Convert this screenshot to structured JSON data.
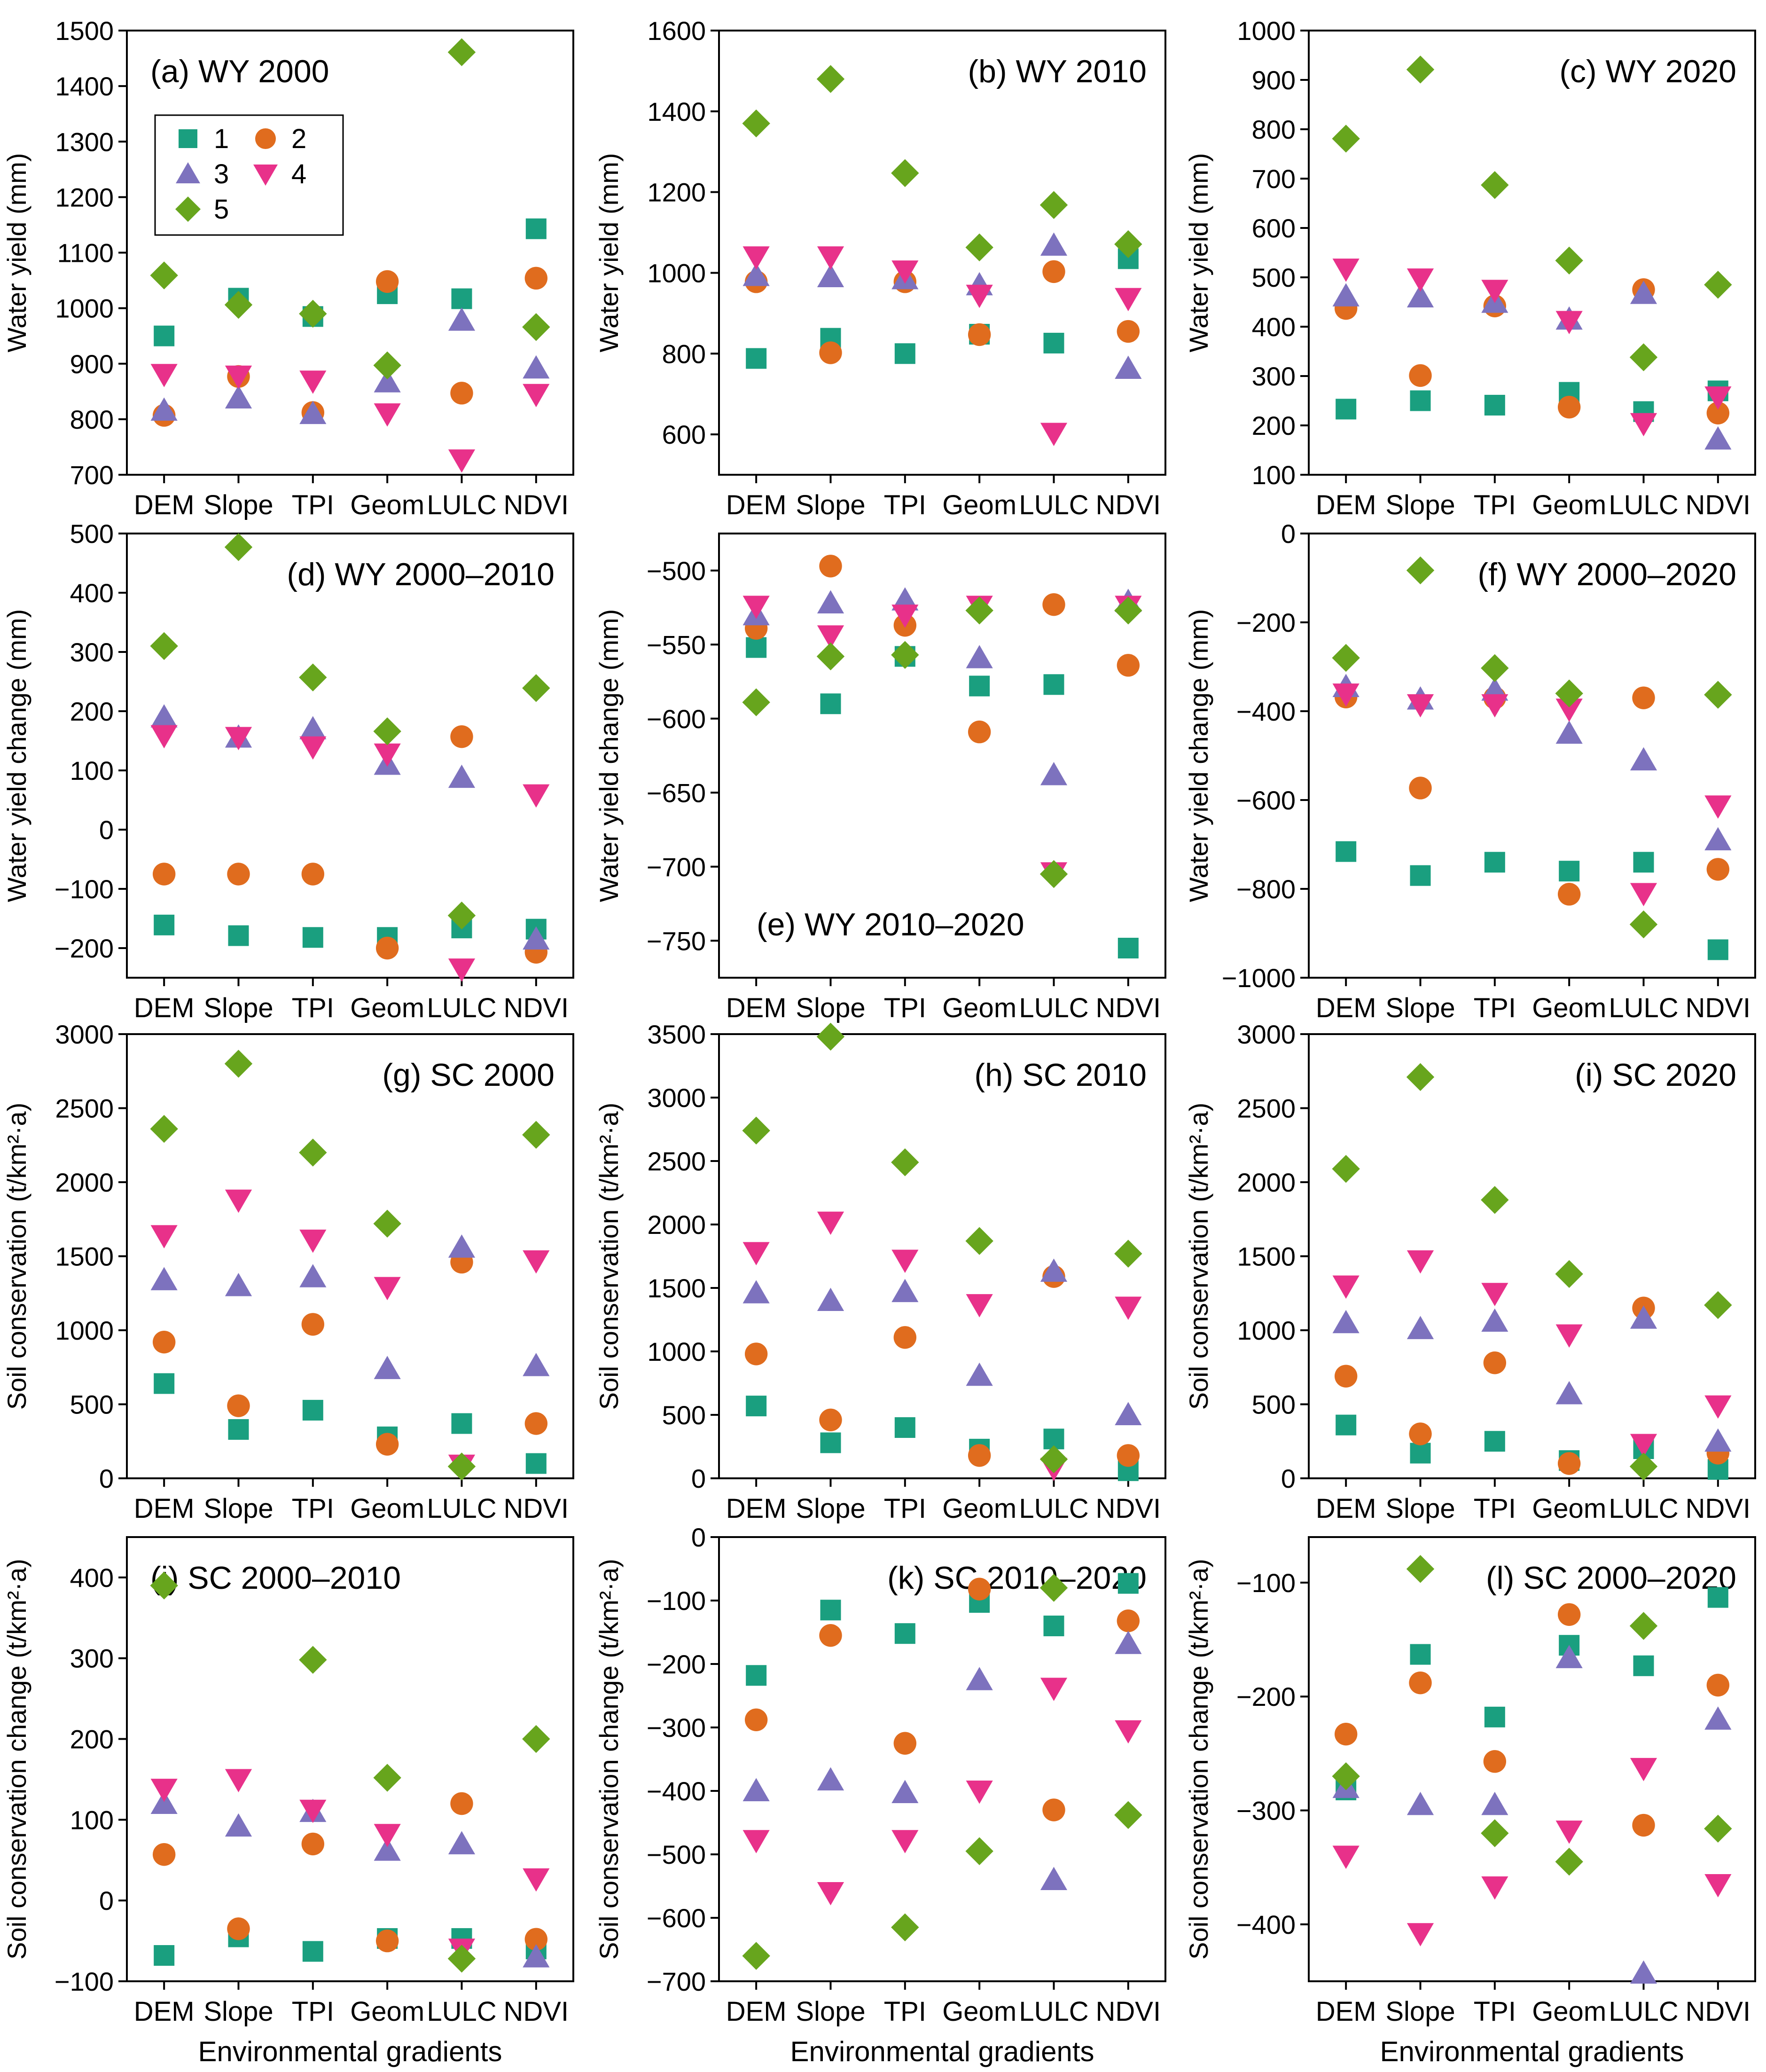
{
  "figure": {
    "x_axis_title": "Environmental gradients",
    "legend_entries": [
      "1",
      "2",
      "3",
      "4",
      "5"
    ],
    "series_colors": {
      "1": "#1a9f7f",
      "2": "#e06c1e",
      "3": "#7d72be",
      "4": "#e8318a",
      "5": "#67a51d"
    }
  },
  "chart_data": [
    {
      "type": "scatter",
      "panel": "a",
      "title": "(a) WY 2000",
      "title_pos": "top-left",
      "legend": true,
      "ylabel": "Water yield (mm)",
      "ylim": [
        700,
        1500
      ],
      "yticks": [
        700,
        800,
        900,
        1000,
        1100,
        1200,
        1300,
        1400,
        1500
      ],
      "categories": [
        "DEM",
        "Slope",
        "TPI",
        "Geom",
        "LULC",
        "NDVI"
      ],
      "series": [
        {
          "name": "1",
          "values": [
            950,
            1018,
            985,
            1026,
            1017,
            1143
          ]
        },
        {
          "name": "2",
          "values": [
            807,
            877,
            812,
            1048,
            847,
            1054
          ]
        },
        {
          "name": "3",
          "values": [
            816,
            838,
            810,
            867,
            978,
            892
          ]
        },
        {
          "name": "4",
          "values": [
            881,
            878,
            869,
            810,
            727,
            845
          ]
        },
        {
          "name": "5",
          "values": [
            1059,
            1006,
            990,
            897,
            1461,
            966
          ]
        }
      ]
    },
    {
      "type": "scatter",
      "panel": "b",
      "title": "(b) WY 2010",
      "title_pos": "top-right",
      "ylabel": "Water yield (mm)",
      "ylim": [
        500,
        1600
      ],
      "yticks": [
        600,
        800,
        1000,
        1200,
        1400,
        1600
      ],
      "categories": [
        "DEM",
        "Slope",
        "TPI",
        "Geom",
        "LULC",
        "NDVI"
      ],
      "series": [
        {
          "name": "1",
          "values": [
            788,
            838,
            800,
            848,
            826,
            1035
          ]
        },
        {
          "name": "2",
          "values": [
            978,
            802,
            978,
            847,
            1003,
            855
          ]
        },
        {
          "name": "3",
          "values": [
            993,
            990,
            985,
            970,
            1068,
            763
          ]
        },
        {
          "name": "4",
          "values": [
            1040,
            1040,
            1005,
            945,
            603,
            937
          ]
        },
        {
          "name": "5",
          "values": [
            1370,
            1480,
            1247,
            1063,
            1168,
            1071
          ]
        }
      ]
    },
    {
      "type": "scatter",
      "panel": "c",
      "title": "(c) WY 2020",
      "title_pos": "top-right",
      "ylabel": "Water yield (mm)",
      "ylim": [
        100,
        1000
      ],
      "yticks": [
        100,
        200,
        300,
        400,
        500,
        600,
        700,
        800,
        900,
        1000
      ],
      "categories": [
        "DEM",
        "Slope",
        "TPI",
        "Geom",
        "LULC",
        "NDVI"
      ],
      "series": [
        {
          "name": "1",
          "values": [
            233,
            250,
            241,
            267,
            228,
            270
          ]
        },
        {
          "name": "2",
          "values": [
            437,
            301,
            442,
            237,
            475,
            225
          ]
        },
        {
          "name": "3",
          "values": [
            462,
            460,
            449,
            415,
            467,
            172
          ]
        },
        {
          "name": "4",
          "values": [
            517,
            497,
            474,
            411,
            204,
            258
          ]
        },
        {
          "name": "5",
          "values": [
            781,
            921,
            687,
            534,
            338,
            485
          ]
        }
      ]
    },
    {
      "type": "scatter",
      "panel": "d",
      "title": "(d) WY 2000–2010",
      "title_pos": "top-right",
      "ylabel": "Water yield change (mm)",
      "ylim": [
        -250,
        500
      ],
      "yticks": [
        -200,
        -100,
        0,
        100,
        200,
        300,
        400,
        500
      ],
      "categories": [
        "DEM",
        "Slope",
        "TPI",
        "Geom",
        "LULC",
        "NDVI"
      ],
      "series": [
        {
          "name": "1",
          "values": [
            -161,
            -179,
            -182,
            -182,
            -166,
            -168
          ]
        },
        {
          "name": "2",
          "values": [
            -75,
            -75,
            -75,
            -200,
            157,
            -207
          ]
        },
        {
          "name": "3",
          "values": [
            190,
            156,
            170,
            110,
            88,
            -185
          ]
        },
        {
          "name": "4",
          "values": [
            159,
            156,
            140,
            128,
            -235,
            59
          ]
        },
        {
          "name": "5",
          "values": [
            310,
            477,
            257,
            166,
            -145,
            239
          ]
        }
      ]
    },
    {
      "type": "scatter",
      "panel": "e",
      "title": "(e) WY 2010–2020",
      "title_pos": "bottom-left",
      "ylabel": "Water yield change (mm)",
      "ylim": [
        -775,
        -475
      ],
      "yticks": [
        -750,
        -700,
        -650,
        -600,
        -550,
        -500
      ],
      "categories": [
        "DEM",
        "Slope",
        "TPI",
        "Geom",
        "LULC",
        "NDVI"
      ],
      "series": [
        {
          "name": "1",
          "values": [
            -552,
            -590,
            -558,
            -578,
            -577,
            -755
          ]
        },
        {
          "name": "2",
          "values": [
            -539,
            -497,
            -537,
            -609,
            -523,
            -564
          ]
        },
        {
          "name": "3",
          "values": [
            -530,
            -522,
            -520,
            -559,
            -638,
            -521
          ]
        },
        {
          "name": "4",
          "values": [
            -524,
            -544,
            -530,
            -524,
            -704,
            -524
          ]
        },
        {
          "name": "5",
          "values": [
            -589,
            -558,
            -557,
            -527,
            -705,
            -527
          ]
        }
      ]
    },
    {
      "type": "scatter",
      "panel": "f",
      "title": "(f) WY 2000–2020",
      "title_pos": "top-right",
      "ylabel": "Water yield change (mm)",
      "ylim": [
        -1000,
        0
      ],
      "yticks": [
        -1000,
        -800,
        -600,
        -400,
        -200,
        0
      ],
      "categories": [
        "DEM",
        "Slope",
        "TPI",
        "Geom",
        "LULC",
        "NDVI"
      ],
      "series": [
        {
          "name": "1",
          "values": [
            -716,
            -770,
            -740,
            -760,
            -740,
            -937
          ]
        },
        {
          "name": "2",
          "values": [
            -368,
            -573,
            -370,
            -812,
            -370,
            -756
          ]
        },
        {
          "name": "3",
          "values": [
            -345,
            -373,
            -353,
            -450,
            -510,
            -690
          ]
        },
        {
          "name": "4",
          "values": [
            -361,
            -385,
            -385,
            -395,
            -810,
            -613
          ]
        },
        {
          "name": "5",
          "values": [
            -280,
            -83,
            -303,
            -360,
            -880,
            -363
          ]
        }
      ]
    },
    {
      "type": "scatter",
      "panel": "g",
      "title": "(g) SC 2000",
      "title_pos": "top-right",
      "ylabel": "Soil conservation (t/km²·a)",
      "ylim": [
        0,
        3000
      ],
      "yticks": [
        0,
        500,
        1000,
        1500,
        2000,
        2500,
        3000
      ],
      "categories": [
        "DEM",
        "Slope",
        "TPI",
        "Geom",
        "LULC",
        "NDVI"
      ],
      "series": [
        {
          "name": "1",
          "values": [
            640,
            330,
            460,
            280,
            370,
            100
          ]
        },
        {
          "name": "2",
          "values": [
            920,
            490,
            1040,
            230,
            1460,
            370
          ]
        },
        {
          "name": "3",
          "values": [
            1340,
            1300,
            1360,
            740,
            1560,
            760
          ]
        },
        {
          "name": "4",
          "values": [
            1640,
            1880,
            1610,
            1290,
            90,
            1470
          ]
        },
        {
          "name": "5",
          "values": [
            2360,
            2800,
            2200,
            1720,
            80,
            2320
          ]
        }
      ]
    },
    {
      "type": "scatter",
      "panel": "h",
      "title": "(h) SC 2010",
      "title_pos": "top-right",
      "ylabel": "Soil conservation (t/km²·a)",
      "ylim": [
        0,
        3500
      ],
      "yticks": [
        0,
        500,
        1000,
        1500,
        2000,
        2500,
        3000,
        3500
      ],
      "categories": [
        "DEM",
        "Slope",
        "TPI",
        "Geom",
        "LULC",
        "NDVI"
      ],
      "series": [
        {
          "name": "1",
          "values": [
            570,
            280,
            400,
            230,
            310,
            60
          ]
        },
        {
          "name": "2",
          "values": [
            980,
            460,
            1110,
            180,
            1590,
            180
          ]
        },
        {
          "name": "3",
          "values": [
            1460,
            1400,
            1470,
            810,
            1630,
            500
          ]
        },
        {
          "name": "4",
          "values": [
            1780,
            2020,
            1720,
            1370,
            80,
            1350
          ]
        },
        {
          "name": "5",
          "values": [
            2740,
            3480,
            2490,
            1870,
            150,
            1770
          ]
        }
      ]
    },
    {
      "type": "scatter",
      "panel": "i",
      "title": "(i) SC 2020",
      "title_pos": "top-right",
      "ylabel": "Soil conservation (t/km²·a)",
      "ylim": [
        0,
        3000
      ],
      "yticks": [
        0,
        500,
        1000,
        1500,
        2000,
        2500,
        3000
      ],
      "categories": [
        "DEM",
        "Slope",
        "TPI",
        "Geom",
        "LULC",
        "NDVI"
      ],
      "series": [
        {
          "name": "1",
          "values": [
            360,
            170,
            250,
            120,
            200,
            60
          ]
        },
        {
          "name": "2",
          "values": [
            690,
            300,
            780,
            100,
            1150,
            170
          ]
        },
        {
          "name": "3",
          "values": [
            1050,
            1010,
            1060,
            570,
            1080,
            250
          ]
        },
        {
          "name": "4",
          "values": [
            1300,
            1470,
            1250,
            970,
            230,
            490
          ]
        },
        {
          "name": "5",
          "values": [
            2090,
            2710,
            1880,
            1380,
            80,
            1170
          ]
        }
      ]
    },
    {
      "type": "scatter",
      "panel": "j",
      "title": "(j) SC 2000–2010",
      "title_pos": "top-left",
      "ylabel": "Soil conservation change (t/km²·a)",
      "ylim": [
        -100,
        450
      ],
      "yticks": [
        -100,
        0,
        100,
        200,
        300,
        400
      ],
      "categories": [
        "DEM",
        "Slope",
        "TPI",
        "Geom",
        "LULC",
        "NDVI"
      ],
      "series": [
        {
          "name": "1",
          "values": [
            -68,
            -45,
            -63,
            -47,
            -47,
            -60
          ]
        },
        {
          "name": "2",
          "values": [
            57,
            -35,
            70,
            -50,
            120,
            -48
          ]
        },
        {
          "name": "3",
          "values": [
            120,
            92,
            110,
            62,
            70,
            -70
          ]
        },
        {
          "name": "4",
          "values": [
            138,
            150,
            112,
            82,
            -60,
            27
          ]
        },
        {
          "name": "5",
          "values": [
            390,
            null,
            298,
            152,
            -72,
            200
          ]
        }
      ]
    },
    {
      "type": "scatter",
      "panel": "k",
      "title": "(k) SC 2010–2020",
      "title_pos": "top-right",
      "ylabel": "Soil conservation change (t/km²·a)",
      "ylim": [
        -700,
        0
      ],
      "yticks": [
        -700,
        -600,
        -500,
        -400,
        -300,
        -200,
        -100,
        0
      ],
      "categories": [
        "DEM",
        "Slope",
        "TPI",
        "Geom",
        "LULC",
        "NDVI"
      ],
      "series": [
        {
          "name": "1",
          "values": [
            -218,
            -115,
            -152,
            -103,
            -140,
            -73
          ]
        },
        {
          "name": "2",
          "values": [
            -288,
            -155,
            -325,
            -82,
            -430,
            -132
          ]
        },
        {
          "name": "3",
          "values": [
            -400,
            -383,
            -403,
            -225,
            -540,
            -168
          ]
        },
        {
          "name": "4",
          "values": [
            -478,
            -560,
            -478,
            -400,
            -238,
            -305
          ]
        },
        {
          "name": "5",
          "values": [
            -660,
            null,
            -615,
            -495,
            -80,
            -438
          ]
        }
      ]
    },
    {
      "type": "scatter",
      "panel": "l",
      "title": "(l) SC 2000–2020",
      "title_pos": "top-right",
      "ylabel": "Soil conservation change (t/km²·a)",
      "ylim": [
        -450,
        -60
      ],
      "yticks": [
        -400,
        -300,
        -200,
        -100
      ],
      "categories": [
        "DEM",
        "Slope",
        "TPI",
        "Geom",
        "LULC",
        "NDVI"
      ],
      "series": [
        {
          "name": "1",
          "values": [
            -282,
            -163,
            -218,
            -155,
            -173,
            -113
          ]
        },
        {
          "name": "2",
          "values": [
            -233,
            -188,
            -257,
            -128,
            -313,
            -190
          ]
        },
        {
          "name": "3",
          "values": [
            -280,
            -295,
            -295,
            -166,
            -443,
            -220
          ]
        },
        {
          "name": "4",
          "values": [
            -340,
            -408,
            -367,
            -318,
            -263,
            -365
          ]
        },
        {
          "name": "5",
          "values": [
            -270,
            -88,
            -320,
            -345,
            -138,
            -316
          ]
        }
      ]
    }
  ]
}
